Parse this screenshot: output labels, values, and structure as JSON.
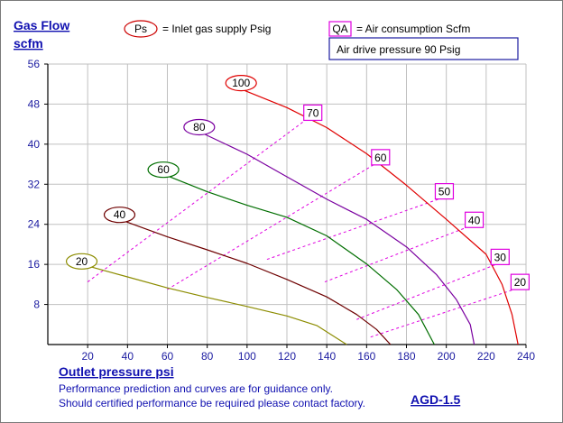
{
  "chart_data": {
    "type": "line",
    "title": "Gas Flow",
    "ylabel": "scfm",
    "xlabel": "Outlet pressure   psi",
    "xlim": [
      0,
      240
    ],
    "ylim": [
      0,
      56
    ],
    "x_ticks": [
      20,
      40,
      60,
      80,
      100,
      120,
      140,
      160,
      180,
      200,
      220,
      240
    ],
    "y_ticks": [
      8,
      16,
      24,
      32,
      40,
      48,
      56
    ],
    "grid": true,
    "legend": {
      "ps_symbol": "Ps",
      "ps_text": "= Inlet gas supply  Psig",
      "qa_symbol": "QA",
      "qa_text": "= Air consumption  Scfm",
      "drive_text": "Air drive pressure  90 Psig"
    },
    "series": [
      {
        "name": "20",
        "color": "#8c8c00",
        "label_at": [
          17,
          16.6
        ],
        "points": [
          [
            17,
            16
          ],
          [
            40,
            13.5
          ],
          [
            60,
            11.3
          ],
          [
            80,
            9.4
          ],
          [
            100,
            7.6
          ],
          [
            120,
            5.7
          ],
          [
            135,
            3.8
          ],
          [
            150,
            0
          ]
        ]
      },
      {
        "name": "40",
        "color": "#6e0000",
        "label_at": [
          36,
          25.9
        ],
        "points": [
          [
            36,
            25
          ],
          [
            60,
            21.5
          ],
          [
            80,
            18.9
          ],
          [
            100,
            16.2
          ],
          [
            120,
            13
          ],
          [
            140,
            9.5
          ],
          [
            155,
            6
          ],
          [
            165,
            3
          ],
          [
            172,
            0
          ]
        ]
      },
      {
        "name": "60",
        "color": "#006e00",
        "label_at": [
          58,
          34.9
        ],
        "points": [
          [
            58,
            34
          ],
          [
            80,
            30.5
          ],
          [
            100,
            27.8
          ],
          [
            120,
            25.4
          ],
          [
            140,
            21.7
          ],
          [
            160,
            16.1
          ],
          [
            175,
            11
          ],
          [
            186,
            6
          ],
          [
            194,
            0
          ]
        ]
      },
      {
        "name": "80",
        "color": "#7a00a0",
        "label_at": [
          76,
          43.4
        ],
        "points": [
          [
            76,
            42.5
          ],
          [
            100,
            38
          ],
          [
            120,
            33.5
          ],
          [
            140,
            29
          ],
          [
            160,
            25
          ],
          [
            180,
            19.5
          ],
          [
            195,
            14
          ],
          [
            205,
            9
          ],
          [
            212,
            4
          ],
          [
            214,
            0
          ]
        ]
      },
      {
        "name": "100",
        "color": "#e00000",
        "label_at": [
          97,
          52.2
        ],
        "points": [
          [
            97,
            51
          ],
          [
            120,
            47.3
          ],
          [
            140,
            43.3
          ],
          [
            160,
            38.1
          ],
          [
            180,
            31.8
          ],
          [
            200,
            25
          ],
          [
            220,
            18
          ],
          [
            228,
            12
          ],
          [
            233,
            6
          ],
          [
            236,
            0
          ]
        ]
      }
    ],
    "air_consumption": [
      {
        "name": "70",
        "color": "#e000e0",
        "label_at": [
          133,
          46.2
        ],
        "start": [
          20,
          12.5
        ],
        "end": [
          130,
          45
        ]
      },
      {
        "name": "60",
        "color": "#e000e0",
        "label_at": [
          167,
          37.3
        ],
        "start": [
          60,
          11
        ],
        "end": [
          164,
          36
        ]
      },
      {
        "name": "50",
        "color": "#e000e0",
        "label_at": [
          199,
          30.5
        ],
        "start": [
          110,
          17
        ],
        "end": [
          196,
          29
        ]
      },
      {
        "name": "40",
        "color": "#e000e0",
        "label_at": [
          214,
          24.8
        ],
        "start": [
          139,
          12.5
        ],
        "end": [
          211,
          23.5
        ]
      },
      {
        "name": "30",
        "color": "#e000e0",
        "label_at": [
          227,
          17.4
        ],
        "start": [
          155,
          5
        ],
        "end": [
          225,
          16
        ]
      },
      {
        "name": "20",
        "color": "#e000e0",
        "label_at": [
          237,
          12.4
        ],
        "start": [
          162,
          1.5
        ],
        "end": [
          234,
          11
        ]
      }
    ]
  },
  "notes": {
    "line1": "Performance prediction and curves are for guidance only.",
    "line2": "Should certified performance be required please contact factory.",
    "model": "AGD-1.5"
  }
}
